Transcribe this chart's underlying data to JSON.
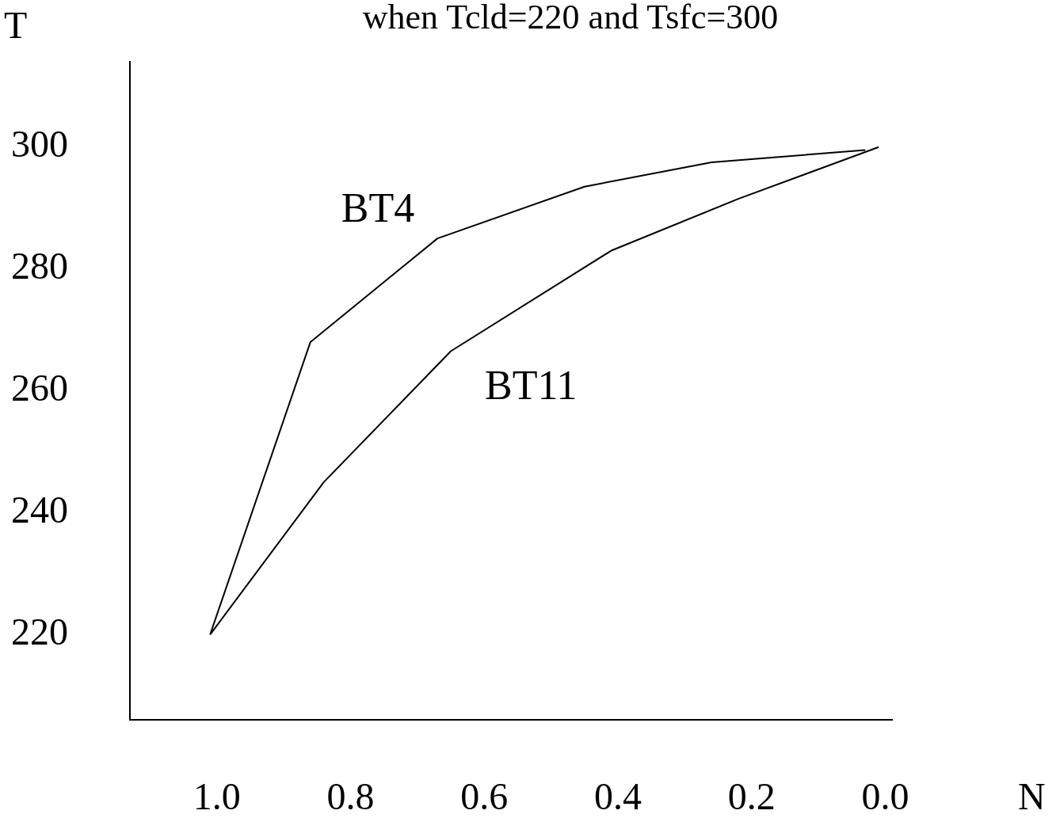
{
  "chart_data": {
    "type": "line",
    "title": "when Tcld=220 and Tsfc=300",
    "xlabel": "N",
    "ylabel": "T",
    "xlim": [
      1.13,
      -0.01
    ],
    "xticks": [
      {
        "value": 1,
        "label": "1.0"
      },
      {
        "value": 0.8,
        "label": "0.8"
      },
      {
        "value": 0.6,
        "label": "0.6"
      },
      {
        "value": 0.4,
        "label": "0.4"
      },
      {
        "value": 0.2,
        "label": "0.2"
      },
      {
        "value": 0,
        "label": "0.0"
      }
    ],
    "ylim": [
      206,
      314
    ],
    "yticks": [
      220,
      240,
      260,
      280,
      300
    ],
    "grid": false,
    "legend": false,
    "marker": "none",
    "line_style": "solid",
    "series": [
      {
        "name": "BT4",
        "color": "#000000",
        "x": [
          1.01,
          0.86,
          0.67,
          0.45,
          0.26,
          0.03
        ],
        "values": [
          220,
          268,
          285,
          293.5,
          297.5,
          299.5
        ]
      },
      {
        "name": "BT11",
        "color": "#000000",
        "x": [
          1.01,
          0.84,
          0.65,
          0.41,
          0.22,
          0.01
        ],
        "values": [
          220,
          245,
          266.5,
          283,
          291.5,
          300
        ]
      }
    ]
  }
}
